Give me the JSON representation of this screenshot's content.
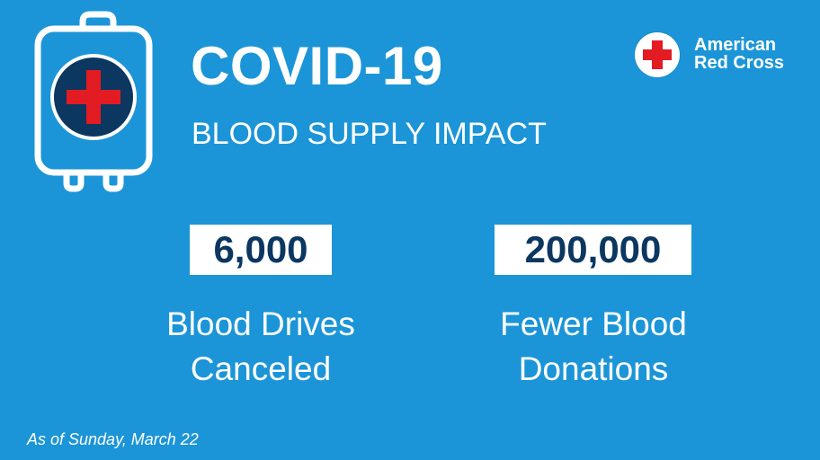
{
  "header": {
    "title": "COVID-19",
    "subtitle": "BLOOD SUPPLY IMPACT"
  },
  "logo": {
    "line1": "American",
    "line2": "Red Cross",
    "icon": "red-cross-icon"
  },
  "stats": [
    {
      "value": "6,000",
      "caption_line1": "Blood Drives",
      "caption_line2": "Canceled"
    },
    {
      "value": "200,000",
      "caption_line1": "Fewer Blood",
      "caption_line2": "Donations"
    }
  ],
  "footnote": "As of Sunday, March 22",
  "colors": {
    "background": "#1b95d7",
    "navy": "#0b3760",
    "red": "#e31b23",
    "white": "#ffffff"
  }
}
